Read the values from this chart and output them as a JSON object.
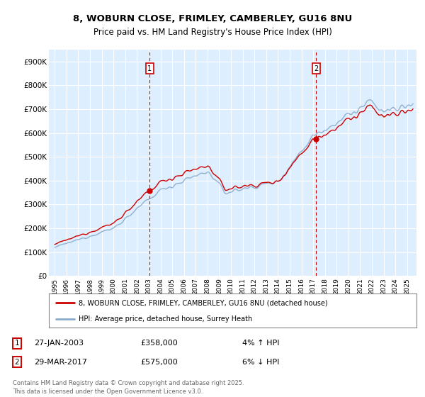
{
  "title_line1": "8, WOBURN CLOSE, FRIMLEY, CAMBERLEY, GU16 8NU",
  "title_line2": "Price paid vs. HM Land Registry's House Price Index (HPI)",
  "background_color": "#ffffff",
  "plot_bg_color": "#ddeeff",
  "grid_color": "#ffffff",
  "red_line_label": "8, WOBURN CLOSE, FRIMLEY, CAMBERLEY, GU16 8NU (detached house)",
  "blue_line_label": "HPI: Average price, detached house, Surrey Heath",
  "annotation1": {
    "num": "1",
    "date": "27-JAN-2003",
    "price": "£358,000",
    "pct": "4% ↑ HPI"
  },
  "annotation2": {
    "num": "2",
    "date": "29-MAR-2017",
    "price": "£575,000",
    "pct": "6% ↓ HPI"
  },
  "footer": "Contains HM Land Registry data © Crown copyright and database right 2025.\nThis data is licensed under the Open Government Licence v3.0.",
  "ylim": [
    0,
    950000
  ],
  "yticks": [
    0,
    100000,
    200000,
    300000,
    400000,
    500000,
    600000,
    700000,
    800000,
    900000
  ],
  "ytick_labels": [
    "£0",
    "£100K",
    "£200K",
    "£300K",
    "£400K",
    "£500K",
    "£600K",
    "£700K",
    "£800K",
    "£900K"
  ],
  "vline1_x": 2003.07,
  "vline2_x": 2017.24,
  "sale1_y": 358000,
  "sale2_y": 575000,
  "red_color": "#cc0000",
  "blue_color": "#88aacc",
  "sale_dot_color": "#cc0000",
  "vline_color": "#cc0000",
  "xlim_left": 1994.5,
  "xlim_right": 2025.8
}
